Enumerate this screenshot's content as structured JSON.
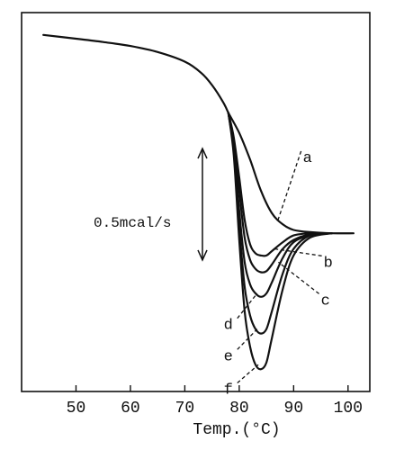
{
  "chart_data": {
    "type": "line",
    "title": "",
    "xlabel": "Temp.(°C)",
    "ylabel": "",
    "xlim": [
      40,
      104
    ],
    "ylim": [
      -1.14,
      0.56
    ],
    "grid": false,
    "legend": "none",
    "x_ticks": [
      50,
      60,
      70,
      80,
      90,
      100
    ],
    "scale_bar": {
      "label": "0.5mcal/s",
      "value": 0.5
    },
    "baseline": {
      "name": "",
      "points": [
        [
          44,
          0.46
        ],
        [
          50,
          0.443
        ],
        [
          55,
          0.428
        ],
        [
          60,
          0.41
        ],
        [
          65,
          0.383
        ],
        [
          70,
          0.34
        ],
        [
          73,
          0.29
        ],
        [
          75,
          0.235
        ],
        [
          77,
          0.16
        ],
        [
          78,
          0.11
        ]
      ]
    },
    "series": [
      {
        "label": "a",
        "points": [
          [
            78,
            0.11
          ],
          [
            80,
            0.02
          ],
          [
            82,
            -0.1
          ],
          [
            84,
            -0.24
          ],
          [
            86,
            -0.34
          ],
          [
            88,
            -0.39
          ],
          [
            90,
            -0.415
          ],
          [
            93,
            -0.425
          ],
          [
            97,
            -0.43
          ],
          [
            101,
            -0.43
          ]
        ]
      },
      {
        "label": "b",
        "points": [
          [
            78,
            0.11
          ],
          [
            79,
            0.0
          ],
          [
            80,
            -0.18
          ],
          [
            81,
            -0.37
          ],
          [
            82,
            -0.48
          ],
          [
            83,
            -0.52
          ],
          [
            84,
            -0.53
          ],
          [
            85,
            -0.53
          ],
          [
            86,
            -0.51
          ],
          [
            88,
            -0.47
          ],
          [
            90,
            -0.44
          ],
          [
            93,
            -0.43
          ],
          [
            97,
            -0.43
          ]
        ]
      },
      {
        "label": "c",
        "points": [
          [
            78,
            0.11
          ],
          [
            79,
            -0.02
          ],
          [
            80,
            -0.24
          ],
          [
            81,
            -0.45
          ],
          [
            82,
            -0.55
          ],
          [
            83,
            -0.59
          ],
          [
            84,
            -0.605
          ],
          [
            85,
            -0.6
          ],
          [
            86,
            -0.57
          ],
          [
            88,
            -0.5
          ],
          [
            90,
            -0.46
          ],
          [
            93,
            -0.435
          ],
          [
            97,
            -0.43
          ]
        ]
      },
      {
        "label": "d",
        "points": [
          [
            78,
            0.11
          ],
          [
            79,
            -0.05
          ],
          [
            80,
            -0.33
          ],
          [
            81,
            -0.56
          ],
          [
            82,
            -0.66
          ],
          [
            83,
            -0.7
          ],
          [
            84,
            -0.715
          ],
          [
            85,
            -0.7
          ],
          [
            86,
            -0.65
          ],
          [
            88,
            -0.54
          ],
          [
            90,
            -0.47
          ],
          [
            93,
            -0.44
          ],
          [
            97,
            -0.43
          ]
        ]
      },
      {
        "label": "e",
        "points": [
          [
            78,
            0.11
          ],
          [
            79,
            -0.06
          ],
          [
            80,
            -0.4
          ],
          [
            81,
            -0.67
          ],
          [
            82,
            -0.8
          ],
          [
            83,
            -0.86
          ],
          [
            84,
            -0.88
          ],
          [
            85,
            -0.86
          ],
          [
            86,
            -0.78
          ],
          [
            88,
            -0.61
          ],
          [
            90,
            -0.5
          ],
          [
            93,
            -0.44
          ],
          [
            97,
            -0.43
          ]
        ]
      },
      {
        "label": "f",
        "points": [
          [
            78,
            0.11
          ],
          [
            79,
            -0.08
          ],
          [
            80,
            -0.46
          ],
          [
            81,
            -0.78
          ],
          [
            82,
            -0.94
          ],
          [
            83,
            -1.02
          ],
          [
            84,
            -1.04
          ],
          [
            85,
            -1.01
          ],
          [
            86,
            -0.9
          ],
          [
            88,
            -0.68
          ],
          [
            90,
            -0.53
          ],
          [
            93,
            -0.45
          ],
          [
            97,
            -0.43
          ]
        ]
      }
    ],
    "annotations": [
      {
        "label": "a",
        "text_at": [
          91.7,
          -0.11
        ],
        "points_to": [
          87.0,
          -0.38
        ]
      },
      {
        "label": "b",
        "text_at": [
          95.5,
          -0.58
        ],
        "points_to": [
          86.5,
          -0.5
        ]
      },
      {
        "label": "c",
        "text_at": [
          95.0,
          -0.75
        ],
        "points_to": [
          87.2,
          -0.56
        ]
      },
      {
        "label": "d",
        "text_at": [
          78.0,
          -0.86
        ],
        "points_to": [
          83.3,
          -0.7
        ]
      },
      {
        "label": "e",
        "text_at": [
          78.0,
          -1.0
        ],
        "points_to": [
          83.3,
          -0.86
        ]
      },
      {
        "label": "f",
        "text_at": [
          78.0,
          -1.15
        ],
        "points_to": [
          83.5,
          -1.02
        ]
      }
    ]
  }
}
